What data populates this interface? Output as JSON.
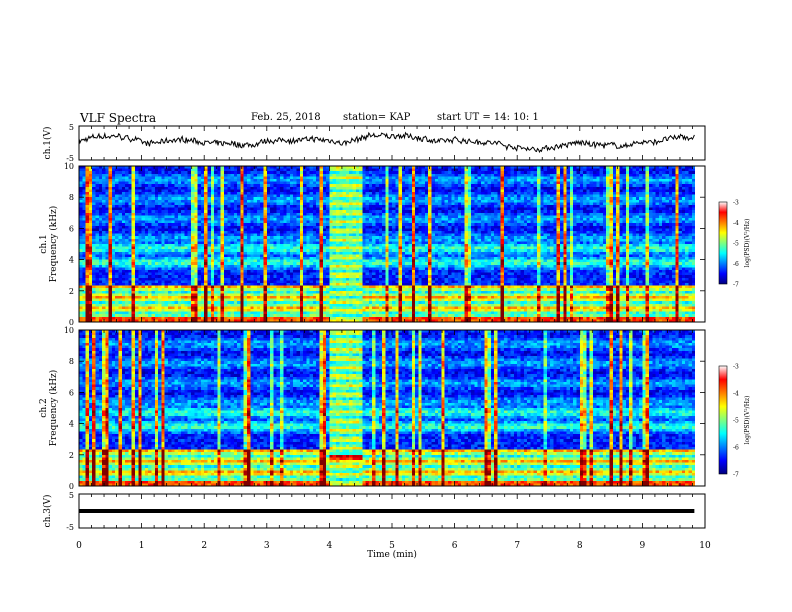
{
  "header": {
    "title": "VLF Spectra",
    "date": "Feb. 25, 2018",
    "station": "station= KAP",
    "start_ut": "start  UT =   14: 10: 1"
  },
  "chart_data": [
    {
      "type": "line",
      "panel": "ch1-waveform",
      "ylabel": "ch.1(V)",
      "yticks": [
        "5",
        "-5"
      ],
      "ylim": [
        -5,
        5
      ],
      "xlim": [
        0,
        10
      ],
      "x_range_plotted": [
        0,
        9.83
      ],
      "series": [
        {
          "values_description_free": true
        }
      ],
      "colors": {
        "line": "#000000"
      }
    },
    {
      "type": "heatmap",
      "panel": "ch1-spectrogram",
      "ylabel_top": "ch.1",
      "ylabel": "Frequency (kHz)",
      "yticks": [
        "0",
        "2",
        "4",
        "6",
        "8",
        "10"
      ],
      "ylim": [
        0,
        10
      ],
      "xlim": [
        0,
        10
      ],
      "colorbar": {
        "label": "log(PSD)(V²/Hz)",
        "ticks": [
          "-3",
          "-4",
          "-5",
          "-6",
          "-7"
        ],
        "range": [
          -7,
          -3
        ],
        "colormap": "jet"
      },
      "burst": {
        "x_start": 4.0,
        "x_end": 4.55
      }
    },
    {
      "type": "heatmap",
      "panel": "ch2-spectrogram",
      "ylabel_top": "ch.2",
      "ylabel": "Frequency (kHz)",
      "yticks": [
        "0",
        "2",
        "4",
        "6",
        "8",
        "10"
      ],
      "ylim": [
        0,
        10
      ],
      "xlim": [
        0,
        10
      ],
      "colorbar": {
        "label": "log(PSD)(V²/Hz)",
        "ticks": [
          "-3",
          "-4",
          "-5",
          "-6",
          "-7"
        ],
        "range": [
          -7,
          -3
        ],
        "colormap": "jet"
      },
      "burst": {
        "x_start": 4.0,
        "x_end": 4.55
      }
    },
    {
      "type": "line",
      "panel": "ch3-waveform",
      "ylabel": "ch.3(V)",
      "yticks": [
        "5",
        "-5"
      ],
      "ylim": [
        -5,
        5
      ],
      "xlim": [
        0,
        10
      ],
      "series": [
        {
          "x": [
            0,
            9.83
          ],
          "values": [
            0,
            0
          ]
        }
      ],
      "colors": {
        "line": "#000000"
      }
    }
  ],
  "x_axis": {
    "label": "Time (min)",
    "ticks": [
      "0",
      "1",
      "2",
      "3",
      "4",
      "5",
      "6",
      "7",
      "8",
      "9",
      "10"
    ]
  }
}
